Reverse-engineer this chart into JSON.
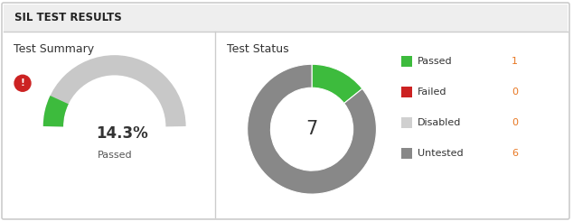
{
  "title": "SIL TEST RESULTS",
  "title_bg": "#eeeeee",
  "panel_bg": "#ffffff",
  "border_color": "#cccccc",
  "summary_title": "Test Summary",
  "summary_pct": 14.3,
  "summary_pct_label": "14.3%",
  "summary_sub_label": "Passed",
  "gauge_bg_color": "#c8c8c8",
  "gauge_fill_color": "#3dbb3d",
  "warning_color": "#cc2222",
  "status_title": "Test Status",
  "status_total": 7,
  "donut_passed": 1,
  "donut_failed": 0,
  "donut_disabled": 0,
  "donut_untested": 6,
  "donut_colors": [
    "#3dbb3d",
    "#cc2222",
    "#d0d0d0",
    "#888888"
  ],
  "legend_labels": [
    "Passed",
    "Failed",
    "Disabled",
    "Untested"
  ],
  "legend_values": [
    1,
    0,
    0,
    6
  ],
  "text_color_dark": "#333333",
  "text_color_mid": "#555555",
  "value_color": "#e87722"
}
